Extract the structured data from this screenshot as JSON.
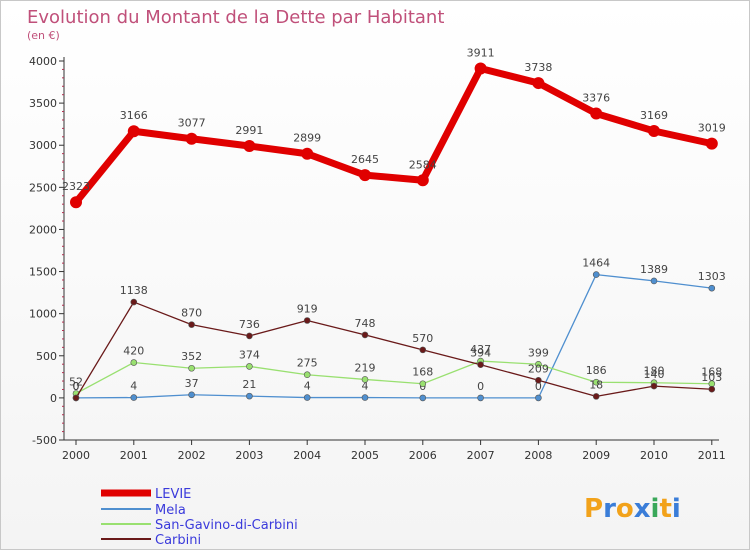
{
  "chart_data": {
    "type": "line",
    "title": "Evolution du Montant de la Dette par Habitant",
    "subtitle": "(en €)",
    "xlabel": "",
    "ylabel": "",
    "ylim": [
      -500,
      4000
    ],
    "yticks": [
      -500,
      0,
      500,
      1000,
      1500,
      2000,
      2500,
      3000,
      3500,
      4000
    ],
    "categories": [
      "2000",
      "2001",
      "2002",
      "2003",
      "2004",
      "2005",
      "2006",
      "2007",
      "2008",
      "2009",
      "2010",
      "2011"
    ],
    "series": [
      {
        "name": "LEVIE",
        "color": "#e00000",
        "values": [
          2323,
          3166,
          3077,
          2991,
          2899,
          2645,
          2584,
          3911,
          3738,
          3376,
          3169,
          3019
        ],
        "labels": [
          "2323",
          "3166",
          "3077",
          "2991",
          "2899",
          "2645",
          "2584",
          "3911",
          "3738",
          "3376",
          "3169",
          "3019"
        ]
      },
      {
        "name": "Mela",
        "color": "#4f8fcf",
        "values": [
          0,
          4,
          37,
          21,
          4,
          4,
          0,
          0,
          0,
          1464,
          1389,
          1303
        ],
        "labels": [
          "0",
          "4",
          "37",
          "21",
          "4",
          "4",
          "0",
          "0",
          "0",
          "1464",
          "1389",
          "1303"
        ]
      },
      {
        "name": "San-Gavino-di-Carbini",
        "color": "#99e070",
        "values": [
          52,
          420,
          352,
          374,
          275,
          219,
          168,
          437,
          399,
          186,
          180,
          168
        ],
        "labels": [
          "52",
          "420",
          "352",
          "374",
          "275",
          "219",
          "168",
          "437",
          "399",
          "186",
          "180",
          "168"
        ]
      },
      {
        "name": "Carbini",
        "color": "#6a1a1a",
        "values": [
          0,
          1138,
          870,
          736,
          919,
          748,
          570,
          394,
          209,
          18,
          140,
          103
        ],
        "labels": [
          "0",
          "1138",
          "870",
          "736",
          "919",
          "748",
          "570",
          "394",
          "209",
          "18",
          "140",
          "103"
        ]
      }
    ],
    "legend_position": "bottom-left",
    "grid": false
  },
  "logo": {
    "letters": [
      "P",
      "r",
      "o",
      "x",
      "i",
      "t",
      "i"
    ],
    "colors": [
      "#f2a21a",
      "#3a7dd8",
      "#f2a21a",
      "#3a7dd8",
      "#3aa85a",
      "#f2a21a",
      "#3a7dd8"
    ]
  }
}
